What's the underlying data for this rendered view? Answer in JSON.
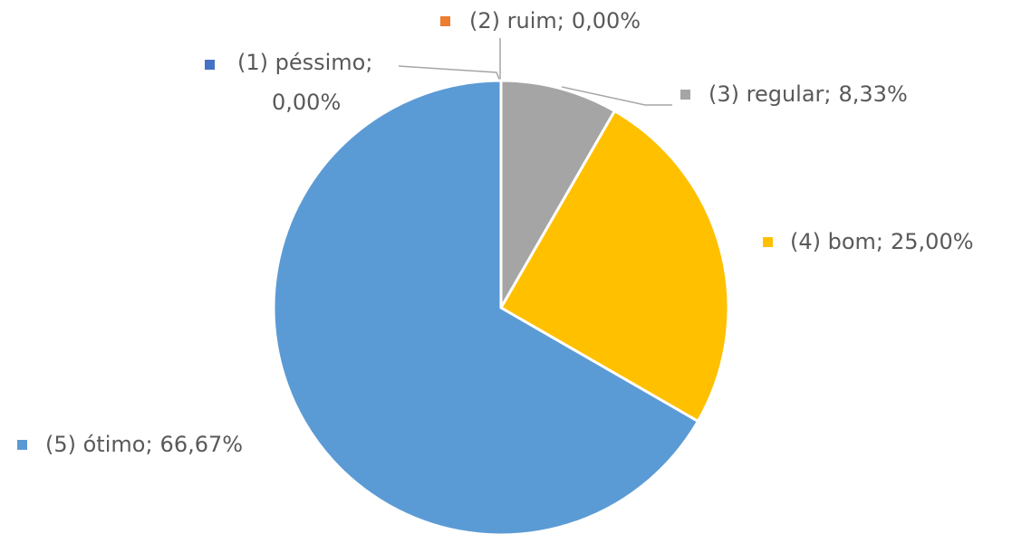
{
  "chart_data": {
    "type": "pie",
    "categories": [
      "(1) péssimo",
      "(2) ruim",
      "(3) regular",
      "(4) bom",
      "(5) ótimo"
    ],
    "values": [
      0,
      0,
      8.33,
      25,
      66.67
    ],
    "value_labels": [
      "0,00%",
      "0,00%",
      "8,33%",
      "25,00%",
      "66,67%"
    ],
    "colors": [
      "#4472c4",
      "#ed7d31",
      "#a5a5a5",
      "#ffc000",
      "#5b9bd5"
    ]
  }
}
